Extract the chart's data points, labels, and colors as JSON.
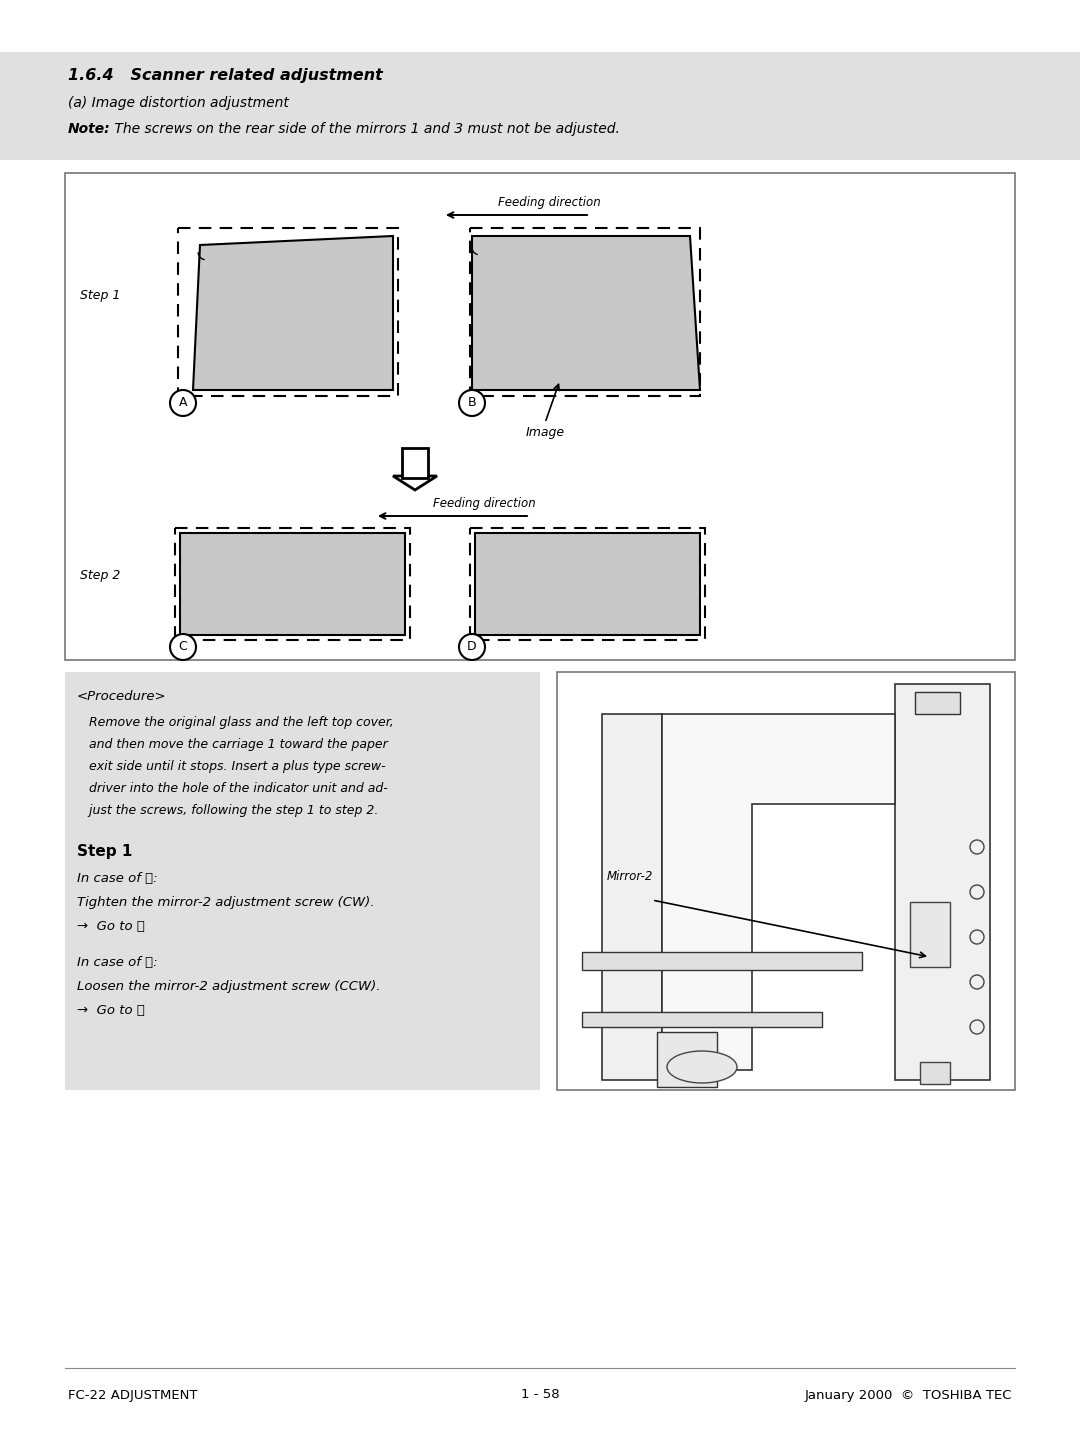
{
  "title_section": "1.6.4   Scanner related adjustment",
  "subtitle": "(a) Image distortion adjustment",
  "note_bold": "Note:",
  "note_rest": " The screws on the rear side of the mirrors 1 and 3 must not be adjusted.",
  "footer_left": "FC-22 ADJUSTMENT",
  "footer_center": "1 - 58",
  "footer_right": "January 2000  ©  TOSHIBA TEC",
  "bg_color": "#e8e8e8",
  "gray_fill": "#c8c8c8",
  "proc_lines": [
    "   Remove the original glass and the left top cover,",
    "   and then move the carriage 1 toward the paper",
    "   exit side until it stops. Insert a plus type screw-",
    "   driver into the hole of the indicator unit and ad-",
    "   just the screws, following the step 1 to step 2."
  ],
  "mirror2_label": "Mirror-2"
}
